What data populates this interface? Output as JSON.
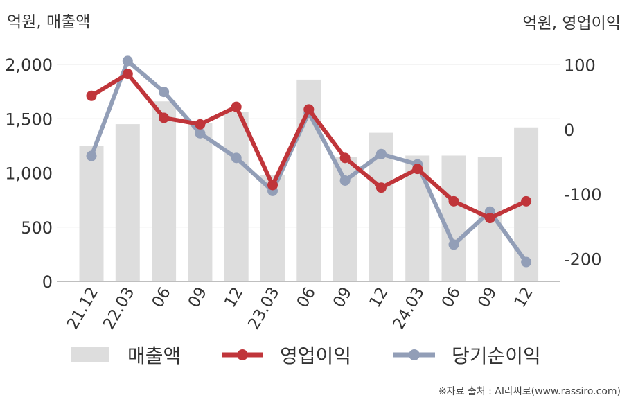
{
  "chart_data": {
    "type": "bar+line",
    "categories": [
      "21.12",
      "22.03",
      "06",
      "09",
      "12",
      "23.03",
      "06",
      "09",
      "12",
      "24.03",
      "06",
      "09",
      "12"
    ],
    "left_axis": {
      "title": "억원, 매출액",
      "ylim": [
        0,
        2000
      ],
      "ticks": [
        0,
        500,
        1000,
        1500,
        2000
      ],
      "tick_labels": [
        "0",
        "500",
        "1,000",
        "1,500",
        "2,000"
      ]
    },
    "right_axis": {
      "title": "억원, 영업이익",
      "ylim": [
        -235,
        100
      ],
      "ticks": [
        -200,
        -100,
        0,
        100
      ],
      "tick_labels": [
        "-200",
        "-100",
        "0",
        "100"
      ]
    },
    "series": [
      {
        "name": "매출액",
        "kind": "bar",
        "axis": "left",
        "color": "#dddddd",
        "values": [
          1250,
          1450,
          1660,
          1460,
          1560,
          980,
          1860,
          1150,
          1370,
          1160,
          1160,
          1150,
          1420
        ]
      },
      {
        "name": "영업이익",
        "kind": "line",
        "axis": "right",
        "color": "#c0353a",
        "values": [
          52,
          86,
          18,
          8,
          35,
          -86,
          31,
          -44,
          -90,
          -61,
          -111,
          -137,
          -111
        ]
      },
      {
        "name": "당기순이익",
        "kind": "line",
        "axis": "right",
        "color": "#929eb7",
        "values": [
          -41,
          106,
          58,
          -6,
          -44,
          -95,
          26,
          -79,
          -38,
          -54,
          -178,
          -127,
          -205
        ]
      }
    ],
    "grid": true,
    "legend_position": "bottom"
  },
  "source_note": "※자료 출처 : AI라씨로(www.rassiro.com)"
}
